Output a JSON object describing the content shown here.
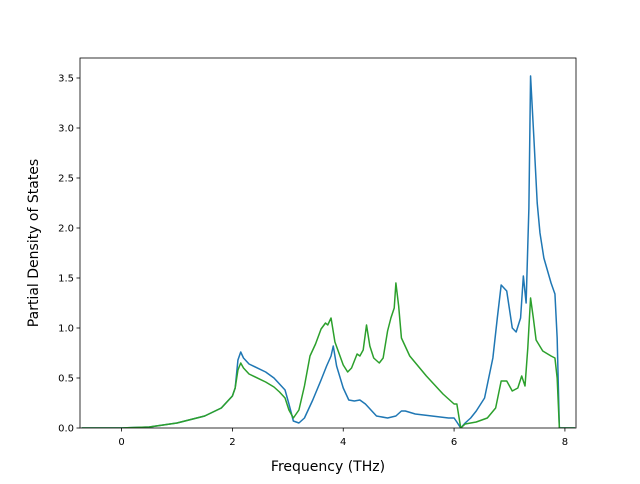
{
  "chart_data": {
    "type": "line",
    "title": "",
    "xlabel": "Frequency (THz)",
    "ylabel": "Partial Density of States",
    "xlim": [
      -0.75,
      8.2
    ],
    "ylim": [
      0,
      3.7
    ],
    "xticks": [
      0,
      2,
      4,
      6,
      8
    ],
    "yticks": [
      0.0,
      0.5,
      1.0,
      1.5,
      2.0,
      2.5,
      3.0,
      3.5
    ],
    "xtick_labels": [
      "0",
      "2",
      "4",
      "6",
      "8"
    ],
    "ytick_labels": [
      "0.0",
      "0.5",
      "1.0",
      "1.5",
      "2.0",
      "2.5",
      "3.0",
      "3.5"
    ],
    "grid": false,
    "legend": "none",
    "series": [
      {
        "color": "#1f77b4",
        "points": [
          [
            -0.72,
            0
          ],
          [
            0,
            0
          ],
          [
            0.5,
            0.01
          ],
          [
            1.0,
            0.05
          ],
          [
            1.5,
            0.12
          ],
          [
            1.8,
            0.2
          ],
          [
            2.0,
            0.32
          ],
          [
            2.05,
            0.4
          ],
          [
            2.1,
            0.68
          ],
          [
            2.15,
            0.76
          ],
          [
            2.2,
            0.7
          ],
          [
            2.3,
            0.64
          ],
          [
            2.6,
            0.56
          ],
          [
            2.75,
            0.5
          ],
          [
            2.85,
            0.44
          ],
          [
            2.95,
            0.38
          ],
          [
            3.02,
            0.24
          ],
          [
            3.1,
            0.07
          ],
          [
            3.2,
            0.05
          ],
          [
            3.3,
            0.1
          ],
          [
            3.45,
            0.28
          ],
          [
            3.6,
            0.48
          ],
          [
            3.7,
            0.62
          ],
          [
            3.78,
            0.72
          ],
          [
            3.82,
            0.82
          ],
          [
            3.88,
            0.62
          ],
          [
            4.0,
            0.4
          ],
          [
            4.1,
            0.28
          ],
          [
            4.2,
            0.27
          ],
          [
            4.3,
            0.28
          ],
          [
            4.4,
            0.24
          ],
          [
            4.6,
            0.12
          ],
          [
            4.8,
            0.1
          ],
          [
            4.95,
            0.12
          ],
          [
            5.05,
            0.17
          ],
          [
            5.12,
            0.17
          ],
          [
            5.3,
            0.14
          ],
          [
            5.6,
            0.12
          ],
          [
            5.9,
            0.1
          ],
          [
            6.0,
            0.1
          ],
          [
            6.05,
            0.06
          ],
          [
            6.12,
            0.0
          ],
          [
            6.2,
            0.05
          ],
          [
            6.3,
            0.1
          ],
          [
            6.4,
            0.17
          ],
          [
            6.55,
            0.3
          ],
          [
            6.7,
            0.7
          ],
          [
            6.78,
            1.1
          ],
          [
            6.85,
            1.43
          ],
          [
            6.95,
            1.37
          ],
          [
            7.05,
            1.0
          ],
          [
            7.12,
            0.96
          ],
          [
            7.2,
            1.1
          ],
          [
            7.25,
            1.52
          ],
          [
            7.3,
            1.25
          ],
          [
            7.35,
            2.2
          ],
          [
            7.38,
            3.52
          ],
          [
            7.44,
            2.9
          ],
          [
            7.5,
            2.25
          ],
          [
            7.55,
            1.95
          ],
          [
            7.62,
            1.7
          ],
          [
            7.75,
            1.45
          ],
          [
            7.82,
            1.34
          ],
          [
            7.86,
            0.9
          ],
          [
            7.9,
            0.0
          ],
          [
            8.18,
            0.0
          ]
        ]
      },
      {
        "color": "#2ca02c",
        "points": [
          [
            -0.72,
            0
          ],
          [
            0,
            0
          ],
          [
            0.5,
            0.01
          ],
          [
            1.0,
            0.05
          ],
          [
            1.5,
            0.12
          ],
          [
            1.8,
            0.2
          ],
          [
            2.0,
            0.32
          ],
          [
            2.05,
            0.4
          ],
          [
            2.1,
            0.58
          ],
          [
            2.15,
            0.65
          ],
          [
            2.2,
            0.6
          ],
          [
            2.3,
            0.54
          ],
          [
            2.6,
            0.46
          ],
          [
            2.75,
            0.41
          ],
          [
            2.85,
            0.36
          ],
          [
            2.95,
            0.3
          ],
          [
            3.02,
            0.18
          ],
          [
            3.1,
            0.1
          ],
          [
            3.2,
            0.18
          ],
          [
            3.3,
            0.42
          ],
          [
            3.4,
            0.72
          ],
          [
            3.5,
            0.84
          ],
          [
            3.6,
            0.99
          ],
          [
            3.68,
            1.05
          ],
          [
            3.72,
            1.03
          ],
          [
            3.78,
            1.1
          ],
          [
            3.85,
            0.86
          ],
          [
            4.0,
            0.63
          ],
          [
            4.08,
            0.56
          ],
          [
            4.15,
            0.6
          ],
          [
            4.25,
            0.74
          ],
          [
            4.3,
            0.72
          ],
          [
            4.36,
            0.78
          ],
          [
            4.42,
            1.03
          ],
          [
            4.48,
            0.82
          ],
          [
            4.55,
            0.7
          ],
          [
            4.65,
            0.65
          ],
          [
            4.72,
            0.7
          ],
          [
            4.8,
            0.97
          ],
          [
            4.86,
            1.1
          ],
          [
            4.92,
            1.2
          ],
          [
            4.95,
            1.45
          ],
          [
            5.0,
            1.22
          ],
          [
            5.05,
            0.9
          ],
          [
            5.2,
            0.72
          ],
          [
            5.5,
            0.52
          ],
          [
            5.8,
            0.34
          ],
          [
            6.0,
            0.24
          ],
          [
            6.05,
            0.24
          ],
          [
            6.12,
            0.0
          ],
          [
            6.2,
            0.04
          ],
          [
            6.4,
            0.06
          ],
          [
            6.6,
            0.1
          ],
          [
            6.75,
            0.2
          ],
          [
            6.85,
            0.47
          ],
          [
            6.95,
            0.47
          ],
          [
            7.05,
            0.37
          ],
          [
            7.15,
            0.4
          ],
          [
            7.22,
            0.52
          ],
          [
            7.28,
            0.42
          ],
          [
            7.33,
            0.8
          ],
          [
            7.38,
            1.3
          ],
          [
            7.43,
            1.1
          ],
          [
            7.48,
            0.88
          ],
          [
            7.6,
            0.77
          ],
          [
            7.75,
            0.72
          ],
          [
            7.82,
            0.7
          ],
          [
            7.86,
            0.5
          ],
          [
            7.9,
            0.0
          ],
          [
            8.18,
            0.0
          ]
        ]
      }
    ]
  }
}
